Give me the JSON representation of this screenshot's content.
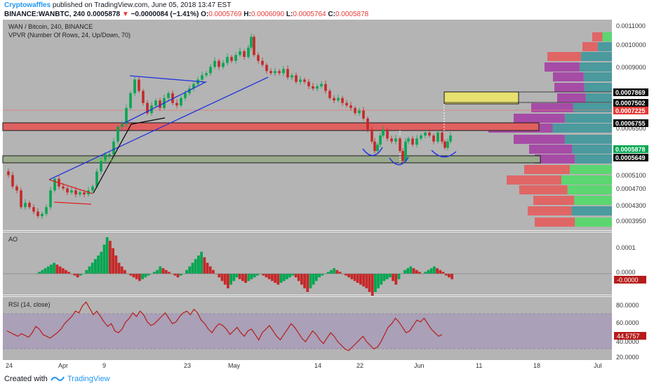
{
  "header": {
    "author": "Cryptowaffles",
    "published_text": "published on TradingView.com, June 05, 2018 13:47 EST",
    "symbol": "BINANCE:WANBTC, 240",
    "last": "0.0005878",
    "change": "−0.0000084 (−1.41%)",
    "o_label": "O:",
    "o": "0.0005769",
    "h_label": "H:",
    "h": "0.0006090",
    "l_label": "L:",
    "l": "0.0005764",
    "c_label": "C:",
    "c": "0.0005878"
  },
  "main_pane": {
    "title": "WAN / Bitcoin, 240, BINANCE",
    "subtitle": "VPVR (Number Of Rows, 24, Up/Down, 70)",
    "price_axis_ticks": [
      "0.0011000",
      "0.0010000",
      "0.0009000",
      "0.0006500",
      "0.0005500",
      "0.0005100",
      "0.0004700",
      "0.0004300",
      "0.0003950"
    ],
    "price_badges": [
      {
        "value": "0.0007869",
        "bg": "#0b0b0b",
        "fg": "#ffffff"
      },
      {
        "value": "0.0007502",
        "bg": "#0b0b0b",
        "fg": "#ffffff"
      },
      {
        "value": "0.0007225",
        "bg": "#e53935",
        "fg": "#ffffff"
      },
      {
        "value": "0.0006755",
        "bg": "#0b0b0b",
        "fg": "#ffffff"
      },
      {
        "value": "0.0005878",
        "bg": "#00a651",
        "fg": "#ffffff"
      },
      {
        "value": "0.0005649",
        "bg": "#0b0b0b",
        "fg": "#ffffff"
      }
    ]
  },
  "ao_pane": {
    "title": "AO",
    "ticks": [
      "0.0001",
      "0.0000"
    ],
    "value_badge": "-0.0000"
  },
  "rsi_pane": {
    "title": "RSI (14, close)",
    "ticks": [
      "80.0000",
      "60.0000",
      "40.0000",
      "20.0000"
    ],
    "value_badge": "44.5757"
  },
  "time_axis": [
    "24",
    "Apr",
    "9",
    "23",
    "May",
    "14",
    "22",
    "Jun",
    "11",
    "18",
    "Jul"
  ],
  "footer": {
    "created_with": "Created with",
    "brand": "TradingView"
  },
  "colors": {
    "up": "#00a651",
    "down": "#c62828",
    "vol_up": "#5cd670",
    "vol_down": "#e06666",
    "vol_teal": "#4a9a9e",
    "vol_purple": "#a64ca6",
    "pane_bg": "#b4b4b4",
    "rsi_line": "#b71c1c"
  },
  "chart_data": {
    "type": "candlestick",
    "price_range": [
      0.000385,
      0.00112
    ],
    "price_points": [
      [
        0,
        0.00051
      ],
      [
        6,
        0.0005
      ],
      [
        12,
        0.00047
      ],
      [
        18,
        0.00046
      ],
      [
        24,
        0.00042
      ],
      [
        30,
        0.00043
      ],
      [
        36,
        0.00042
      ],
      [
        42,
        0.00041
      ],
      [
        48,
        0.0004
      ],
      [
        54,
        0.000405
      ],
      [
        60,
        0.00042
      ],
      [
        66,
        0.00046
      ],
      [
        72,
        0.00049
      ],
      [
        78,
        0.00047
      ],
      [
        84,
        0.000465
      ],
      [
        90,
        0.000455
      ],
      [
        96,
        0.00046
      ],
      [
        102,
        0.00045
      ],
      [
        108,
        0.000455
      ],
      [
        114,
        0.00045
      ],
      [
        120,
        0.00046
      ],
      [
        126,
        0.00047
      ],
      [
        132,
        0.00051
      ],
      [
        138,
        0.00054
      ],
      [
        144,
        0.00056
      ],
      [
        150,
        0.00056
      ],
      [
        156,
        0.0006
      ],
      [
        162,
        0.00065
      ],
      [
        168,
        0.00066
      ],
      [
        174,
        0.00072
      ],
      [
        180,
        0.00078
      ],
      [
        186,
        0.00084
      ],
      [
        192,
        0.00079
      ],
      [
        198,
        0.00074
      ],
      [
        204,
        0.0007
      ],
      [
        210,
        0.00073
      ],
      [
        216,
        0.00075
      ],
      [
        222,
        0.00072
      ],
      [
        228,
        0.00076
      ],
      [
        234,
        0.00078
      ],
      [
        240,
        0.00074
      ],
      [
        246,
        0.00073
      ],
      [
        252,
        0.00076
      ],
      [
        258,
        0.00078
      ],
      [
        264,
        0.0008
      ],
      [
        270,
        0.00082
      ],
      [
        276,
        0.00084
      ],
      [
        282,
        0.00086
      ],
      [
        288,
        0.00087
      ],
      [
        294,
        0.0009
      ],
      [
        300,
        0.00093
      ],
      [
        306,
        0.0009
      ],
      [
        312,
        0.00092
      ],
      [
        318,
        0.00095
      ],
      [
        324,
        0.00093
      ],
      [
        330,
        0.00096
      ],
      [
        336,
        0.00098
      ],
      [
        342,
        0.00095
      ],
      [
        348,
        0.001
      ],
      [
        352,
        0.00106
      ],
      [
        356,
        0.00096
      ],
      [
        362,
        0.00093
      ],
      [
        368,
        0.00091
      ],
      [
        374,
        0.00088
      ],
      [
        380,
        0.00087
      ],
      [
        386,
        0.00088
      ],
      [
        392,
        0.00087
      ],
      [
        398,
        0.00089
      ],
      [
        404,
        0.00085
      ],
      [
        410,
        0.00086
      ],
      [
        416,
        0.00083
      ],
      [
        422,
        0.00084
      ],
      [
        428,
        0.00083
      ],
      [
        434,
        0.00081
      ],
      [
        440,
        0.0008
      ],
      [
        446,
        0.00081
      ],
      [
        452,
        0.00082
      ],
      [
        458,
        0.00079
      ],
      [
        464,
        0.00076
      ],
      [
        470,
        0.00075
      ],
      [
        476,
        0.00076
      ],
      [
        482,
        0.00074
      ],
      [
        488,
        0.00073
      ],
      [
        494,
        0.00072
      ],
      [
        500,
        0.0007
      ],
      [
        506,
        0.00071
      ],
      [
        512,
        0.00068
      ],
      [
        518,
        0.00064
      ],
      [
        524,
        0.0006
      ],
      [
        528,
        0.00057
      ],
      [
        532,
        0.00059
      ],
      [
        536,
        0.00062
      ],
      [
        540,
        0.00064
      ],
      [
        546,
        0.00061
      ],
      [
        552,
        0.0006
      ],
      [
        558,
        0.00061
      ],
      [
        564,
        0.00057
      ],
      [
        568,
        0.00054
      ],
      [
        572,
        0.0006
      ],
      [
        576,
        0.00061
      ],
      [
        582,
        0.00059
      ],
      [
        588,
        0.00061
      ],
      [
        594,
        0.00062
      ],
      [
        600,
        0.00063
      ],
      [
        606,
        0.00062
      ],
      [
        612,
        0.0006
      ],
      [
        618,
        0.00063
      ],
      [
        624,
        0.0006
      ],
      [
        628,
        0.00058
      ],
      [
        632,
        0.0006
      ],
      [
        636,
        0.00062
      ]
    ],
    "ao_values": [
      0,
      1,
      2,
      3,
      4,
      5,
      6,
      5,
      4,
      3,
      2,
      1,
      0,
      -1,
      -2,
      -1,
      0,
      2,
      4,
      6,
      8,
      10,
      12,
      16,
      20,
      18,
      14,
      10,
      6,
      4,
      2,
      0,
      -1,
      -2,
      -3,
      -4,
      -3,
      -2,
      -1,
      0,
      1,
      2,
      4,
      3,
      2,
      1,
      0,
      -1,
      -2,
      -1,
      0,
      2,
      4,
      6,
      8,
      10,
      12,
      9,
      6,
      4,
      2,
      0,
      -2,
      -4,
      -6,
      -8,
      -6,
      -4,
      -2,
      -3,
      -4,
      -5,
      -4,
      -3,
      -2,
      -1,
      0,
      -1,
      -2,
      -3,
      -4,
      -5,
      -6,
      -5,
      -4,
      -3,
      -2,
      -1,
      -2,
      -4,
      -6,
      -8,
      -10,
      -8,
      -6,
      -4,
      -2,
      -1,
      0,
      1,
      2,
      3,
      2,
      1,
      0,
      -1,
      -2,
      -3,
      -4,
      -5,
      -6,
      -7,
      -8,
      -10,
      -12,
      -10,
      -8,
      -6,
      -4,
      -3,
      -2,
      -4,
      -6,
      -3,
      0,
      2,
      3,
      4,
      3,
      2,
      1,
      0,
      1,
      2,
      3,
      4,
      3,
      2,
      1,
      -1,
      -2,
      -3
    ],
    "rsi_values": [
      50,
      48,
      46,
      44,
      47,
      45,
      43,
      48,
      55,
      52,
      46,
      44,
      42,
      45,
      48,
      52,
      58,
      62,
      66,
      72,
      70,
      78,
      82,
      75,
      68,
      72,
      66,
      60,
      55,
      58,
      50,
      48,
      52,
      60,
      64,
      70,
      66,
      72,
      68,
      60,
      56,
      58,
      62,
      66,
      70,
      64,
      58,
      60,
      66,
      70,
      72,
      68,
      74,
      70,
      62,
      58,
      52,
      48,
      54,
      58,
      56,
      52,
      46,
      50,
      54,
      48,
      44,
      50,
      52,
      46,
      40,
      48,
      52,
      56,
      50,
      44,
      40,
      46,
      52,
      58,
      54,
      48,
      42,
      38,
      44,
      50,
      46,
      40,
      36,
      42,
      48,
      44,
      38,
      34,
      30,
      28,
      32,
      36,
      40,
      44,
      38,
      34,
      30,
      32,
      38,
      46,
      54,
      58,
      64,
      60,
      54,
      48,
      50,
      56,
      62,
      60,
      64,
      58,
      52,
      48,
      44,
      46
    ]
  }
}
